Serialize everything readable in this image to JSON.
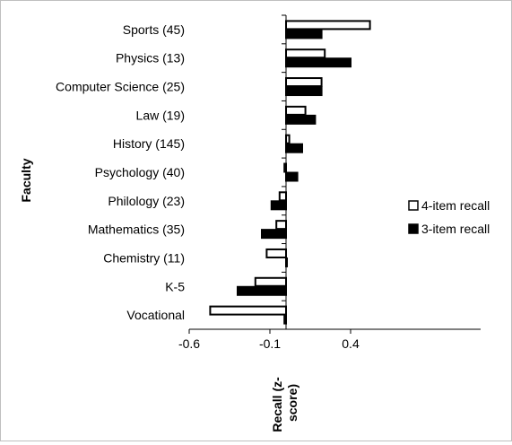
{
  "chart_data": {
    "type": "bar",
    "orientation": "horizontal",
    "categories": [
      "Sports (45)",
      "Physics (13)",
      "Computer Science (25)",
      "Law (19)",
      "History (145)",
      "Psychology (40)",
      "Philology (23)",
      "Mathematics (35)",
      "Chemistry (11)",
      "K-5",
      "Vocational"
    ],
    "series": [
      {
        "name": "4-item recall",
        "color": "#ffffff",
        "stroke": "#000000",
        "values": [
          0.52,
          0.24,
          0.22,
          0.12,
          0.02,
          -0.01,
          -0.04,
          -0.06,
          -0.12,
          -0.19,
          -0.47
        ]
      },
      {
        "name": "3-item recall",
        "color": "#000000",
        "stroke": "#000000",
        "values": [
          0.22,
          0.4,
          0.22,
          0.18,
          0.1,
          0.07,
          -0.09,
          -0.15,
          0.0,
          -0.3,
          -0.01
        ]
      }
    ],
    "xlabel": "Recall (z-score)",
    "ylabel": "Faculty",
    "xlim": [
      -0.6,
      0.54
    ],
    "xticks": [
      -0.6,
      -0.1,
      0.4
    ],
    "xtick_labels": [
      "-0.6",
      "-0.1",
      "0.4"
    ],
    "grid": false,
    "legend_position": "right"
  }
}
